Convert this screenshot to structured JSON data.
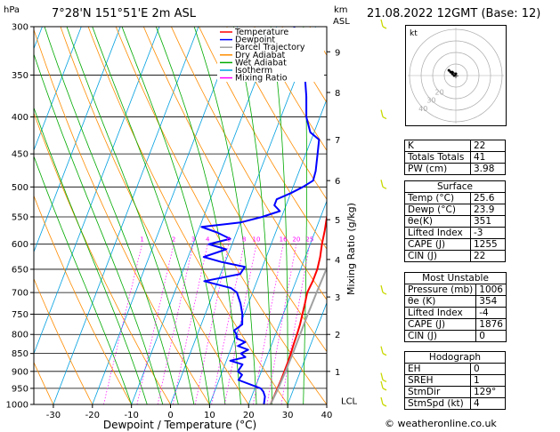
{
  "header": {
    "title": "7°28'N 151°51'E 2m ASL",
    "timestamp": "21.08.2022 12GMT (Base: 12)",
    "hpa_unit": "hPa",
    "km_unit": "km",
    "asl_unit": "ASL"
  },
  "footer": {
    "credit": "© weatheronline.co.uk"
  },
  "chart_data": {
    "type": "line",
    "title": "",
    "xlabel": "Dewpoint / Temperature (°C)",
    "ylabel": "Mixing Ratio (g/kg)",
    "xlim": [
      -35,
      40
    ],
    "x_ticks": [
      -30,
      -20,
      -10,
      0,
      10,
      20,
      30,
      40
    ],
    "pressure_range": [
      300,
      1000
    ],
    "pressure_ticks": [
      300,
      350,
      400,
      450,
      500,
      550,
      600,
      650,
      700,
      750,
      800,
      850,
      900,
      950,
      1000
    ],
    "km_ticks": [
      {
        "label": "1",
        "p": 900
      },
      {
        "label": "2",
        "p": 800
      },
      {
        "label": "3",
        "p": 710
      },
      {
        "label": "4",
        "p": 630
      },
      {
        "label": "5",
        "p": 555
      },
      {
        "label": "6",
        "p": 490
      },
      {
        "label": "7",
        "p": 430
      },
      {
        "label": "8",
        "p": 370
      },
      {
        "label": "9",
        "p": 325
      }
    ],
    "lcl_label": "LCL",
    "lcl_pressure": 990,
    "mixing_ratio_labels": [
      "1",
      "2",
      "3",
      "4",
      "6",
      "8",
      "10",
      "16",
      "20",
      "25"
    ],
    "legend": [
      {
        "name": "Temperature",
        "color": "#ff0000"
      },
      {
        "name": "Dewpoint",
        "color": "#0000ff"
      },
      {
        "name": "Parcel Trajectory",
        "color": "#a0a0a0"
      },
      {
        "name": "Dry Adiabat",
        "color": "#ff8c00"
      },
      {
        "name": "Wet Adiabat",
        "color": "#00aa00"
      },
      {
        "name": "Isotherm",
        "color": "#00a0e0"
      },
      {
        "name": "Mixing Ratio",
        "color": "#ff00ff"
      }
    ],
    "series": [
      {
        "name": "Temperature",
        "color": "#ff0000",
        "points": [
          {
            "p": 1000,
            "x": 25.6
          },
          {
            "p": 975,
            "x": 25.7
          },
          {
            "p": 950,
            "x": 25.8
          },
          {
            "p": 925,
            "x": 25.9
          },
          {
            "p": 900,
            "x": 25.9
          },
          {
            "p": 875,
            "x": 25.9
          },
          {
            "p": 850,
            "x": 25.8
          },
          {
            "p": 825,
            "x": 25.6
          },
          {
            "p": 800,
            "x": 25.5
          },
          {
            "p": 775,
            "x": 25.3
          },
          {
            "p": 750,
            "x": 24.9
          },
          {
            "p": 725,
            "x": 24.5
          },
          {
            "p": 700,
            "x": 24.0
          },
          {
            "p": 675,
            "x": 24.3
          },
          {
            "p": 650,
            "x": 24.3
          },
          {
            "p": 625,
            "x": 23.8
          },
          {
            "p": 600,
            "x": 23.0
          },
          {
            "p": 575,
            "x": 22.4
          },
          {
            "p": 550,
            "x": 21.6
          },
          {
            "p": 525,
            "x": 21.1
          },
          {
            "p": 500,
            "x": 20.2
          },
          {
            "p": 475,
            "x": 19.6
          },
          {
            "p": 450,
            "x": 18.6
          },
          {
            "p": 425,
            "x": 18.0
          },
          {
            "p": 400,
            "x": 17.0
          },
          {
            "p": 375,
            "x": 16.0
          },
          {
            "p": 350,
            "x": 14.8
          },
          {
            "p": 325,
            "x": 13.8
          },
          {
            "p": 300,
            "x": 12.4
          }
        ]
      },
      {
        "name": "Dewpoint",
        "color": "#0000ff",
        "points": [
          {
            "p": 1000,
            "x": 23.9
          },
          {
            "p": 975,
            "x": 23.4
          },
          {
            "p": 960,
            "x": 22.5
          },
          {
            "p": 950,
            "x": 21.5
          },
          {
            "p": 925,
            "x": 15.0
          },
          {
            "p": 910,
            "x": 15.4
          },
          {
            "p": 900,
            "x": 14.0
          },
          {
            "p": 880,
            "x": 14.5
          },
          {
            "p": 870,
            "x": 11.0
          },
          {
            "p": 860,
            "x": 14.5
          },
          {
            "p": 850,
            "x": 13.0
          },
          {
            "p": 840,
            "x": 14.5
          },
          {
            "p": 830,
            "x": 11.5
          },
          {
            "p": 820,
            "x": 13.0
          },
          {
            "p": 810,
            "x": 10.5
          },
          {
            "p": 800,
            "x": 10.0
          },
          {
            "p": 790,
            "x": 9.0
          },
          {
            "p": 775,
            "x": 10.5
          },
          {
            "p": 750,
            "x": 9.5
          },
          {
            "p": 725,
            "x": 8.0
          },
          {
            "p": 700,
            "x": 6.0
          },
          {
            "p": 690,
            "x": 4.0
          },
          {
            "p": 675,
            "x": -3.5
          },
          {
            "p": 660,
            "x": 5.0
          },
          {
            "p": 645,
            "x": 5.5
          },
          {
            "p": 635,
            "x": -1.0
          },
          {
            "p": 625,
            "x": -6.0
          },
          {
            "p": 610,
            "x": -1.0
          },
          {
            "p": 600,
            "x": -6.0
          },
          {
            "p": 590,
            "x": -1.0
          },
          {
            "p": 578,
            "x": -5.0
          },
          {
            "p": 568,
            "x": -9.5
          },
          {
            "p": 560,
            "x": 0.0
          },
          {
            "p": 550,
            "x": 5.0
          },
          {
            "p": 540,
            "x": 9.0
          },
          {
            "p": 530,
            "x": 7.0
          },
          {
            "p": 520,
            "x": 7.0
          },
          {
            "p": 510,
            "x": 10.0
          },
          {
            "p": 500,
            "x": 12.5
          },
          {
            "p": 490,
            "x": 14.5
          },
          {
            "p": 475,
            "x": 14.2
          },
          {
            "p": 450,
            "x": 13.0
          },
          {
            "p": 430,
            "x": 12.0
          },
          {
            "p": 420,
            "x": 9.0
          },
          {
            "p": 400,
            "x": 6.5
          },
          {
            "p": 375,
            "x": 4.5
          },
          {
            "p": 350,
            "x": 2.0
          },
          {
            "p": 325,
            "x": -1.5
          },
          {
            "p": 300,
            "x": -5.5
          }
        ]
      },
      {
        "name": "Parcel Trajectory",
        "color": "#a0a0a0",
        "points": [
          {
            "p": 1000,
            "x": 25.6
          },
          {
            "p": 950,
            "x": 26.0
          },
          {
            "p": 900,
            "x": 26.2
          },
          {
            "p": 850,
            "x": 26.3
          },
          {
            "p": 800,
            "x": 26.3
          },
          {
            "p": 750,
            "x": 26.3
          },
          {
            "p": 700,
            "x": 26.4
          },
          {
            "p": 650,
            "x": 26.6
          },
          {
            "p": 600,
            "x": 26.8
          },
          {
            "p": 550,
            "x": 27.0
          },
          {
            "p": 500,
            "x": 27.1
          },
          {
            "p": 450,
            "x": 27.0
          },
          {
            "p": 400,
            "x": 26.6
          },
          {
            "p": 350,
            "x": 25.8
          },
          {
            "p": 300,
            "x": 24.2
          }
        ]
      }
    ],
    "wind_barb_pressures": [
      300,
      400,
      500,
      700,
      850,
      925,
      950,
      1000
    ]
  },
  "hodograph": {
    "label": "kt",
    "ring_labels": [
      "20",
      "30",
      "40"
    ],
    "points": [
      {
        "u": -1,
        "v": 0
      },
      {
        "u": -2,
        "v": 1
      },
      {
        "u": -3,
        "v": 2
      },
      {
        "u": -4,
        "v": 3
      },
      {
        "u": -2,
        "v": 2
      },
      {
        "u": 0,
        "v": 1
      }
    ]
  },
  "indices": [
    {
      "label": "K",
      "value": "22"
    },
    {
      "label": "Totals Totals",
      "value": "41"
    },
    {
      "label": "PW (cm)",
      "value": "3.98"
    }
  ],
  "surface": {
    "title": "Surface",
    "rows": [
      {
        "label": "Temp (°C)",
        "value": "25.6"
      },
      {
        "label": "Dewp (°C)",
        "value": "23.9"
      },
      {
        "label": "θe(K)",
        "value": "351"
      },
      {
        "label": "Lifted Index",
        "value": "-3"
      },
      {
        "label": "CAPE (J)",
        "value": "1255"
      },
      {
        "label": "CIN (J)",
        "value": "22"
      }
    ]
  },
  "most_unstable": {
    "title": "Most Unstable",
    "rows": [
      {
        "label": "Pressure (mb)",
        "value": "1006"
      },
      {
        "label": "θe (K)",
        "value": "354"
      },
      {
        "label": "Lifted Index",
        "value": "-4"
      },
      {
        "label": "CAPE (J)",
        "value": "1876"
      },
      {
        "label": "CIN (J)",
        "value": "0"
      }
    ]
  },
  "hodograph_table": {
    "title": "Hodograph",
    "rows": [
      {
        "label": "EH",
        "value": "0"
      },
      {
        "label": "SREH",
        "value": "1"
      },
      {
        "label": "StmDir",
        "value": "129°"
      },
      {
        "label": "StmSpd (kt)",
        "value": "4"
      }
    ]
  }
}
